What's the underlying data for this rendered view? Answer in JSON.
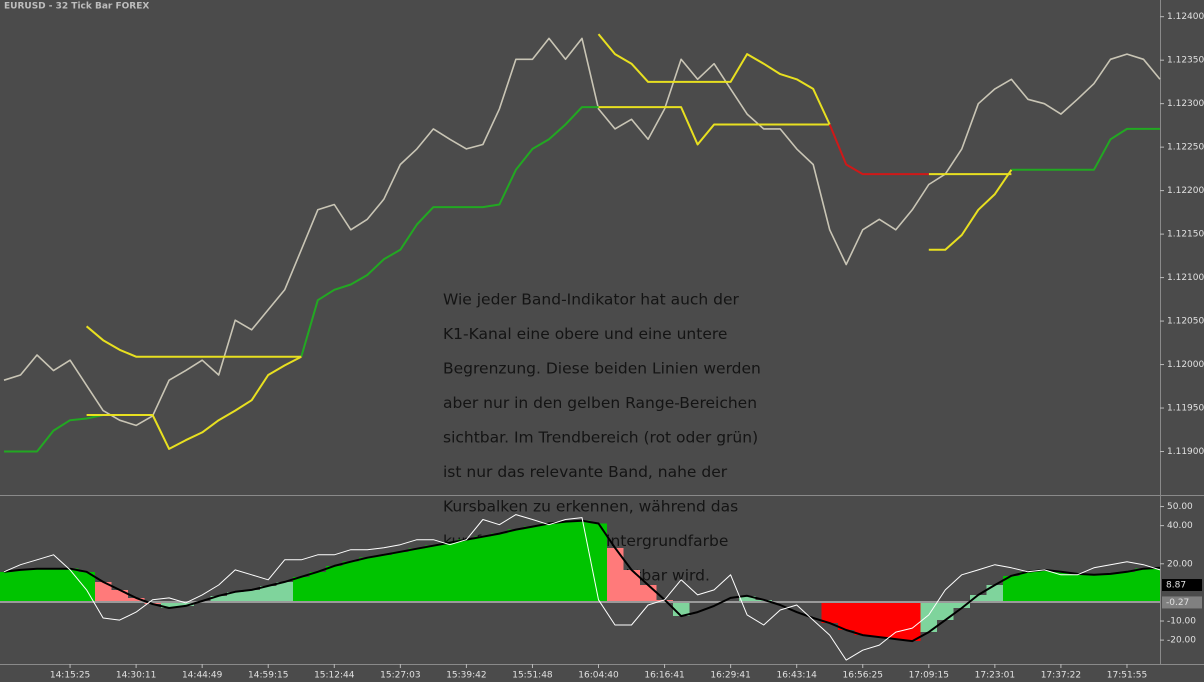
{
  "chart_data": [
    {
      "type": "line",
      "title": "EURUSD - 32 Tick Bar  FOREX",
      "annotation": [
        "Wie jeder Band-Indikator hat auch der",
        "K1-Kanal eine obere und eine untere",
        "Begrenzung. Diese beiden Linien werden",
        "aber nur in den gelben Range-Bereichen",
        "sichtbar. Im Trendbereich (rot oder grün)",
        "ist nur das relevante Band, nahe der",
        "Kursbalken zu erkennen, während das",
        "kursferne Band die Hintergrundfarbe",
        "annimt und somit unsichtbar wird."
      ],
      "ylim": [
        1.1185,
        1.1241
      ],
      "yticks": [
        {
          "value": 1.124,
          "label": "1.12400"
        },
        {
          "value": 1.1235,
          "label": "1.12350"
        },
        {
          "value": 1.123,
          "label": "1.12300"
        },
        {
          "value": 1.1225,
          "label": "1.12250"
        },
        {
          "value": 1.122,
          "label": "1.12200"
        },
        {
          "value": 1.1215,
          "label": "1.12150"
        },
        {
          "value": 1.121,
          "label": "1.12100"
        },
        {
          "value": 1.1205,
          "label": "1.12050"
        },
        {
          "value": 1.12,
          "label": "1.12000"
        },
        {
          "value": 1.1195,
          "label": "1.11950"
        },
        {
          "value": 1.119,
          "label": "1.11900"
        }
      ],
      "series": [
        {
          "color": "#c9c5b5",
          "values": [
            1.11982,
            1.11988,
            1.12011,
            1.11993,
            1.12005,
            1.11976,
            1.11947,
            1.11936,
            1.1193,
            1.11941,
            1.11982,
            1.11993,
            1.12005,
            1.11988,
            1.12051,
            1.1204,
            1.12063,
            1.12086,
            1.12132,
            1.12178,
            1.12184,
            1.12155,
            1.12167,
            1.1219,
            1.1223,
            1.12248,
            1.12271,
            1.12259,
            1.12248,
            1.12253,
            1.12294,
            1.12351,
            1.12351,
            1.12375,
            1.12351,
            1.12375,
            1.12294,
            1.12271,
            1.12282,
            1.12259,
            1.12294,
            1.12351,
            1.12328,
            1.12346,
            1.12317,
            1.12288,
            1.12271,
            1.12271,
            1.12248,
            1.1223,
            1.12155,
            1.12115,
            1.12155,
            1.12167,
            1.12155,
            1.12178,
            1.12207,
            1.12219,
            1.12248,
            1.123,
            1.12317,
            1.12328,
            1.12305,
            1.123,
            1.12288,
            1.12305,
            1.12323,
            1.12351,
            1.12357,
            1.12351,
            1.12328
          ]
        },
        {
          "color": "#22a822",
          "values": [
            1.119,
            1.119,
            1.119,
            1.11924,
            1.11936,
            1.11938,
            1.11942,
            null,
            null,
            null,
            null,
            null,
            null,
            null,
            null,
            null,
            null,
            null,
            1.12009,
            1.12074,
            1.12086,
            1.12092,
            1.12103,
            1.12121,
            1.12132,
            1.12161,
            1.12181,
            1.12181,
            1.12181,
            1.12181,
            1.12184,
            1.12224,
            1.12248,
            1.12259,
            1.12276,
            1.12296,
            1.12296,
            null,
            null,
            null,
            null,
            null,
            null,
            null,
            null,
            null,
            null,
            null,
            null,
            null,
            null,
            null,
            null,
            null,
            null,
            null,
            null,
            null,
            null,
            null,
            null,
            1.12224,
            1.12224,
            1.12224,
            1.12224,
            1.12224,
            1.12224,
            1.12259,
            1.12271,
            1.12271,
            1.12271
          ]
        },
        {
          "color": "#e8e020",
          "values": [
            null,
            null,
            null,
            null,
            null,
            1.11942,
            1.11942,
            1.11942,
            1.11942,
            1.11942,
            1.11903,
            1.11913,
            1.11922,
            1.11936,
            1.11947,
            1.11959,
            1.11988,
            1.11999,
            1.12009,
            null,
            null,
            null,
            null,
            null,
            null,
            null,
            null,
            null,
            null,
            null,
            null,
            null,
            null,
            null,
            null,
            null,
            1.12296,
            1.12296,
            1.12296,
            1.12296,
            1.12296,
            1.12296,
            1.12253,
            1.12276,
            1.12276,
            1.12276,
            1.12276,
            1.12276,
            1.12276,
            1.12276,
            1.12276,
            null,
            null,
            null,
            null,
            null,
            1.12132,
            1.12132,
            1.12149,
            1.12178,
            1.12196,
            1.12224,
            null,
            null,
            null,
            null,
            null,
            null,
            null,
            null,
            null
          ]
        },
        {
          "color": "#e8e020",
          "values": [
            null,
            null,
            null,
            null,
            null,
            1.12044,
            1.12028,
            1.12017,
            1.12009,
            1.12009,
            1.12009,
            1.12009,
            1.12009,
            1.12009,
            1.12009,
            1.12009,
            1.12009,
            1.12009,
            1.12009,
            null,
            null,
            null,
            null,
            null,
            null,
            null,
            null,
            null,
            null,
            null,
            null,
            null,
            null,
            null,
            null,
            null,
            1.1238,
            1.12357,
            1.12346,
            1.12325,
            1.12325,
            1.12325,
            1.12325,
            1.12325,
            1.12325,
            1.12357,
            1.12346,
            1.12334,
            1.12328,
            1.12317,
            1.12276,
            null,
            null,
            null,
            null,
            null,
            1.12219,
            1.12219,
            1.12219,
            1.12219,
            1.12219,
            1.12219,
            null,
            null,
            null,
            null,
            null,
            null,
            null,
            null,
            null
          ]
        },
        {
          "color": "#d01818",
          "values": [
            null,
            null,
            null,
            null,
            null,
            null,
            null,
            null,
            null,
            null,
            null,
            null,
            null,
            null,
            null,
            null,
            null,
            null,
            null,
            null,
            null,
            null,
            null,
            null,
            null,
            null,
            null,
            null,
            null,
            null,
            null,
            null,
            null,
            null,
            null,
            null,
            null,
            null,
            null,
            null,
            null,
            null,
            null,
            null,
            null,
            null,
            null,
            null,
            null,
            null,
            1.12276,
            1.1223,
            1.12219,
            1.12219,
            1.12219,
            1.12219,
            1.12219,
            null,
            null,
            null,
            null,
            null,
            null,
            null,
            null,
            null,
            null,
            null,
            null,
            null,
            null
          ]
        }
      ]
    },
    {
      "type": "bar",
      "categories": [
        null,
        null,
        null,
        null,
        "14:15:25",
        null,
        null,
        null,
        "14:30:11",
        null,
        null,
        null,
        "14:44:49",
        null,
        null,
        null,
        "14:59:15",
        null,
        null,
        null,
        "15:12:44",
        null,
        null,
        null,
        "15:27:03",
        null,
        null,
        null,
        "15:39:42",
        null,
        null,
        null,
        "15:51:48",
        null,
        null,
        null,
        "16:04:40",
        null,
        null,
        null,
        "16:16:41",
        null,
        null,
        null,
        "16:29:41",
        null,
        null,
        null,
        "16:43:14",
        null,
        null,
        null,
        "16:56:25",
        null,
        null,
        null,
        "17:09:15",
        null,
        null,
        null,
        "17:23:01",
        null,
        null,
        null,
        "17:37:22",
        null,
        null,
        null,
        "17:51:55",
        null,
        null
      ],
      "values": [
        15.8,
        16.8,
        17.4,
        17.4,
        17.4,
        15.8,
        10.5,
        6.3,
        2.1,
        -1.1,
        -3.2,
        -2.1,
        0.5,
        3.2,
        5.3,
        6.3,
        8.4,
        10.5,
        13.2,
        15.8,
        18.9,
        21.1,
        23.2,
        24.7,
        26.3,
        27.9,
        29.5,
        31.1,
        32.6,
        34.2,
        35.8,
        37.9,
        39.5,
        41.1,
        42.1,
        42.6,
        41.1,
        28.4,
        16.8,
        8.9,
        1.1,
        -7.4,
        -5.3,
        -2.1,
        2.1,
        3.2,
        1.1,
        -1.6,
        -5.3,
        -8.4,
        -11.1,
        -14.7,
        -17.4,
        -18.4,
        -19.5,
        -20.5,
        -15.8,
        -9.5,
        -3.2,
        3.7,
        8.9,
        13.7,
        15.8,
        16.8,
        15.8,
        14.7,
        14.2,
        14.7,
        15.8,
        17.4,
        17.9
      ],
      "colors": [
        "#00c400",
        "#00c400",
        "#00c400",
        "#00c400",
        "#00c400",
        "#00c400",
        "#ff7a7a",
        "#ff7a7a",
        "#ff7a7a",
        "#ff7a7a",
        "#7fd49c",
        "#7fd49c",
        "#7fd49c",
        "#7fd49c",
        "#7fd49c",
        "#7fd49c",
        "#7fd49c",
        "#7fd49c",
        "#00c400",
        "#00c400",
        "#00c400",
        "#00c400",
        "#00c400",
        "#00c400",
        "#00c400",
        "#00c400",
        "#00c400",
        "#00c400",
        "#00c400",
        "#00c400",
        "#00c400",
        "#00c400",
        "#00c400",
        "#00c400",
        "#00c400",
        "#00c400",
        "#00c400",
        "#ff7a7a",
        "#ff7a7a",
        "#ff7a7a",
        "#ff7a7a",
        "#7fd49c",
        "#4b4b4b",
        "#4b4b4b",
        "#4b4b4b",
        "#7fd49c",
        "#7fd49c",
        "#4b4b4b",
        "#4b4b4b",
        "#4b4b4b",
        "#ff0000",
        "#ff0000",
        "#ff0000",
        "#ff0000",
        "#ff0000",
        "#ff0000",
        "#7fd49c",
        "#7fd49c",
        "#7fd49c",
        "#7fd49c",
        "#7fd49c",
        "#00c400",
        "#00c400",
        "#00c400",
        "#00c400",
        "#00c400",
        "#00c400",
        "#00c400",
        "#00c400",
        "#00c400",
        "#00c400"
      ],
      "series": [
        {
          "color": "#ffffff",
          "values": [
            15.8,
            19.5,
            22.1,
            24.7,
            16.8,
            6.3,
            -8.4,
            -9.5,
            -5.3,
            1.1,
            2.1,
            -0.5,
            3.7,
            8.9,
            16.8,
            14.2,
            11.6,
            22.1,
            22.1,
            24.7,
            24.7,
            27.4,
            27.4,
            28.4,
            30,
            32.6,
            32.6,
            30,
            32.6,
            43.2,
            40.5,
            45.8,
            43.2,
            40.5,
            43.2,
            44.2,
            1.1,
            -12.1,
            -12.1,
            -1.6,
            1.1,
            11.6,
            3.7,
            6.3,
            14.2,
            -6.8,
            -12.1,
            -4.2,
            -1.6,
            -9.5,
            -17.4,
            -30.5,
            -25.3,
            -22.6,
            -15.8,
            -13.7,
            -6.8,
            6.3,
            14.2,
            16.8,
            19.5,
            17.9,
            15.8,
            16.8,
            14.2,
            14.2,
            17.9,
            19.5,
            21.1,
            19.5,
            16.8
          ]
        }
      ],
      "current_values": [
        8.87,
        -0.27
      ],
      "current_colors": [
        "#000000",
        "#808080"
      ],
      "ylim": [
        -32,
        55
      ],
      "yticks": [
        {
          "value": 50,
          "label": "50.00"
        },
        {
          "value": 40,
          "label": "40.00"
        },
        {
          "value": 20,
          "label": "20.00"
        },
        {
          "value": -10,
          "label": "-10.00"
        },
        {
          "value": -20,
          "label": "-20.00"
        }
      ]
    }
  ]
}
